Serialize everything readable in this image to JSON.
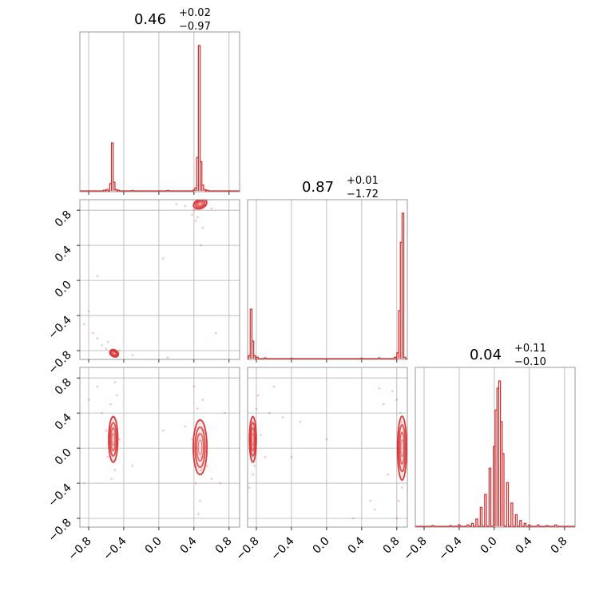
{
  "chart_data": {
    "type": "corner",
    "color": "#d62728",
    "grid": true,
    "axis_range": [
      -0.9,
      0.92
    ],
    "ticks": [
      -0.8,
      -0.4,
      0.0,
      0.4,
      0.8
    ],
    "tick_labels": [
      "−0.8",
      "−0.4",
      "0.0",
      "0.4",
      "0.8"
    ],
    "parameters": [
      {
        "median": "0.46",
        "upper": "+0.02",
        "lower": "−0.97",
        "histogram": [
          {
            "x": -0.62,
            "h": 0.005
          },
          {
            "x": -0.59,
            "h": 0.01
          },
          {
            "x": -0.55,
            "h": 0.05
          },
          {
            "x": -0.53,
            "h": 0.33
          },
          {
            "x": -0.51,
            "h": 0.06
          },
          {
            "x": -0.49,
            "h": 0.01
          },
          {
            "x": -0.46,
            "h": 0.005
          },
          {
            "x": -0.3,
            "h": 0.003
          },
          {
            "x": 0.1,
            "h": 0.003
          },
          {
            "x": 0.4,
            "h": 0.005
          },
          {
            "x": 0.42,
            "h": 0.02
          },
          {
            "x": 0.44,
            "h": 0.23
          },
          {
            "x": 0.46,
            "h": 1.0
          },
          {
            "x": 0.48,
            "h": 0.2
          },
          {
            "x": 0.5,
            "h": 0.04
          },
          {
            "x": 0.52,
            "h": 0.01
          },
          {
            "x": 0.55,
            "h": 0.005
          }
        ]
      },
      {
        "median": "0.87",
        "upper": "+0.01",
        "lower": "−1.72",
        "histogram": [
          {
            "x": -0.88,
            "h": 0.02
          },
          {
            "x": -0.86,
            "h": 0.34
          },
          {
            "x": -0.84,
            "h": 0.12
          },
          {
            "x": -0.82,
            "h": 0.02
          },
          {
            "x": -0.79,
            "h": 0.01
          },
          {
            "x": -0.7,
            "h": 0.005
          },
          {
            "x": -0.4,
            "h": 0.003
          },
          {
            "x": 0.4,
            "h": 0.003
          },
          {
            "x": 0.6,
            "h": 0.005
          },
          {
            "x": 0.78,
            "h": 0.01
          },
          {
            "x": 0.81,
            "h": 0.04
          },
          {
            "x": 0.83,
            "h": 0.33
          },
          {
            "x": 0.85,
            "h": 0.8
          },
          {
            "x": 0.87,
            "h": 1.0
          },
          {
            "x": 0.89,
            "h": 0.01
          }
        ]
      },
      {
        "median": "0.04",
        "upper": "+0.11",
        "lower": "−0.10",
        "histogram": [
          {
            "x": -0.7,
            "h": 0.005
          },
          {
            "x": -0.5,
            "h": 0.005
          },
          {
            "x": -0.4,
            "h": 0.01
          },
          {
            "x": -0.3,
            "h": 0.01
          },
          {
            "x": -0.25,
            "h": 0.02
          },
          {
            "x": -0.2,
            "h": 0.05
          },
          {
            "x": -0.15,
            "h": 0.13
          },
          {
            "x": -0.1,
            "h": 0.22
          },
          {
            "x": -0.05,
            "h": 0.4
          },
          {
            "x": 0.0,
            "h": 0.55
          },
          {
            "x": 0.02,
            "h": 0.8
          },
          {
            "x": 0.04,
            "h": 0.95
          },
          {
            "x": 0.06,
            "h": 1.0
          },
          {
            "x": 0.08,
            "h": 0.72
          },
          {
            "x": 0.1,
            "h": 0.5
          },
          {
            "x": 0.15,
            "h": 0.3
          },
          {
            "x": 0.2,
            "h": 0.16
          },
          {
            "x": 0.25,
            "h": 0.08
          },
          {
            "x": 0.3,
            "h": 0.04
          },
          {
            "x": 0.35,
            "h": 0.02
          },
          {
            "x": 0.4,
            "h": 0.01
          },
          {
            "x": 0.5,
            "h": 0.01
          },
          {
            "x": 0.6,
            "h": 0.005
          },
          {
            "x": 0.7,
            "h": 0.01
          }
        ]
      }
    ],
    "pairs": [
      {
        "x_param": 0,
        "y_param": 1,
        "clusters": [
          {
            "x": 0.47,
            "y": 0.87,
            "sx": 0.03,
            "sy": 0.02,
            "tilt": -20
          },
          {
            "x": -0.51,
            "y": -0.83,
            "sx": 0.02,
            "sy": 0.015,
            "tilt": 30
          }
        ],
        "scatter": [
          [
            0.45,
            0.86
          ],
          [
            0.49,
            0.88
          ],
          [
            0.44,
            0.89
          ],
          [
            0.52,
            0.85
          ],
          [
            0.4,
            0.8
          ],
          [
            0.38,
            0.75
          ],
          [
            0.42,
            0.68
          ],
          [
            0.5,
            0.6
          ],
          [
            0.44,
            0.72
          ],
          [
            0.55,
            0.9
          ],
          [
            0.3,
            0.85
          ],
          [
            0.6,
            0.82
          ],
          [
            0.48,
            0.4
          ],
          [
            0.2,
            0.87
          ],
          [
            -0.51,
            -0.81
          ],
          [
            -0.55,
            -0.84
          ],
          [
            -0.48,
            -0.85
          ],
          [
            -0.6,
            -0.78
          ],
          [
            -0.65,
            -0.74
          ],
          [
            -0.7,
            -0.66
          ],
          [
            -0.75,
            -0.6
          ],
          [
            -0.58,
            -0.7
          ],
          [
            -0.45,
            -0.8
          ],
          [
            -0.85,
            -0.5
          ],
          [
            -0.3,
            -0.85
          ],
          [
            0.1,
            -0.88
          ],
          [
            -0.7,
            0.05
          ],
          [
            -0.8,
            -0.35
          ],
          [
            0.65,
            -0.6
          ],
          [
            0.05,
            0.25
          ]
        ]
      },
      {
        "x_param": 0,
        "y_param": 2,
        "clusters": [
          {
            "x": 0.47,
            "y": 0.01,
            "sx": 0.03,
            "sy": 0.12,
            "tilt": 0
          },
          {
            "x": -0.52,
            "y": 0.1,
            "sx": 0.02,
            "sy": 0.1,
            "tilt": 0
          }
        ],
        "scatter": [
          [
            0.45,
            0.3
          ],
          [
            0.48,
            -0.25
          ],
          [
            0.44,
            0.45
          ],
          [
            0.5,
            0.55
          ],
          [
            0.42,
            -0.4
          ],
          [
            0.47,
            -0.6
          ],
          [
            0.4,
            0.7
          ],
          [
            0.52,
            0.2
          ],
          [
            0.55,
            -0.2
          ],
          [
            0.38,
            0.1
          ],
          [
            0.6,
            -0.35
          ],
          [
            0.3,
            0.25
          ],
          [
            0.46,
            0.15
          ],
          [
            0.49,
            -0.1
          ],
          [
            0.45,
            -0.75
          ],
          [
            0.7,
            -0.4
          ],
          [
            -0.52,
            0.35
          ],
          [
            -0.5,
            -0.25
          ],
          [
            -0.55,
            0.5
          ],
          [
            -0.48,
            0.6
          ],
          [
            -0.54,
            -0.35
          ],
          [
            -0.6,
            0.2
          ],
          [
            -0.45,
            0.1
          ],
          [
            -0.58,
            -0.1
          ],
          [
            -0.7,
            0.7
          ],
          [
            -0.65,
            0.4
          ],
          [
            -0.5,
            0.75
          ],
          [
            -0.3,
            -0.2
          ],
          [
            0.05,
            0.2
          ],
          [
            -0.85,
            -0.4
          ],
          [
            0.75,
            0.4
          ],
          [
            -0.8,
            0.55
          ]
        ]
      },
      {
        "x_param": 1,
        "y_param": 2,
        "clusters": [
          {
            "x": 0.86,
            "y": 0.0,
            "sx": 0.02,
            "sy": 0.14,
            "tilt": 0
          },
          {
            "x": -0.84,
            "y": 0.1,
            "sx": 0.015,
            "sy": 0.1,
            "tilt": 0
          }
        ],
        "scatter": [
          [
            0.85,
            0.3
          ],
          [
            0.88,
            -0.25
          ],
          [
            0.84,
            0.4
          ],
          [
            0.8,
            0.55
          ],
          [
            0.86,
            -0.45
          ],
          [
            0.82,
            -0.6
          ],
          [
            0.75,
            0.65
          ],
          [
            0.9,
            0.2
          ],
          [
            0.6,
            0.68
          ],
          [
            0.65,
            0.5
          ],
          [
            0.7,
            -0.3
          ],
          [
            0.5,
            -0.6
          ],
          [
            0.55,
            -0.7
          ],
          [
            -0.85,
            0.3
          ],
          [
            -0.82,
            -0.2
          ],
          [
            -0.8,
            0.45
          ],
          [
            -0.78,
            0.6
          ],
          [
            -0.84,
            -0.3
          ],
          [
            -0.75,
            0.15
          ],
          [
            -0.7,
            -0.1
          ],
          [
            -0.6,
            0.7
          ],
          [
            -0.5,
            0.35
          ],
          [
            -0.65,
            0.4
          ],
          [
            -0.4,
            -0.1
          ],
          [
            -0.3,
            0.3
          ],
          [
            0.0,
            0.1
          ],
          [
            0.3,
            -0.8
          ],
          [
            0.8,
            -0.8
          ],
          [
            -0.88,
            -0.45
          ],
          [
            -0.86,
            0.1
          ]
        ]
      }
    ]
  }
}
